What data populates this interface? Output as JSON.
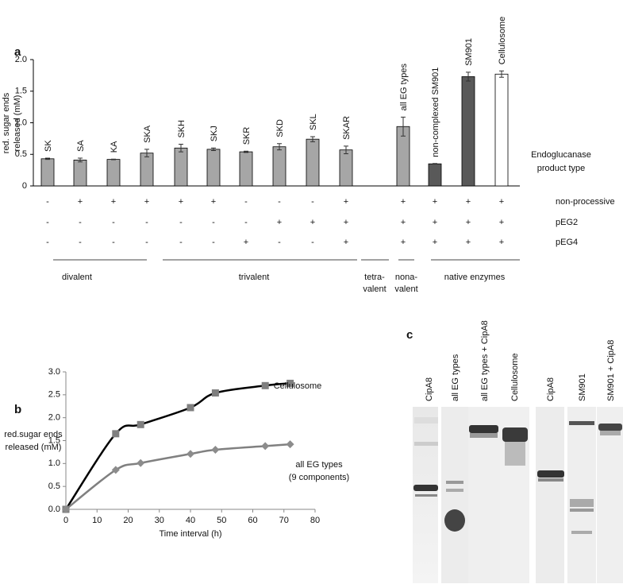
{
  "chart_data": [
    {
      "type": "bar",
      "label": "a",
      "ylabel": [
        "red. sugar ends",
        "released (mM)"
      ],
      "annotation": [
        "Endoglucanase",
        "product type"
      ],
      "categories": [
        "SK",
        "SA",
        "KA",
        "SKA",
        "SKH",
        "SKJ",
        "SKR",
        "SKD",
        "SKL",
        "SKAR",
        "all EG types",
        "non-complexed SM901",
        "SM901",
        "Cellulosome"
      ],
      "values": [
        0.43,
        0.41,
        0.42,
        0.52,
        0.6,
        0.58,
        0.54,
        0.62,
        0.74,
        0.57,
        0.94,
        0.35,
        1.73,
        1.77
      ],
      "errors": [
        0.01,
        0.03,
        0.005,
        0.06,
        0.06,
        0.02,
        0.01,
        0.05,
        0.04,
        0.06,
        0.15,
        0.005,
        0.07,
        0.05
      ],
      "colors": [
        "#a6a6a6",
        "#a6a6a6",
        "#a6a6a6",
        "#a6a6a6",
        "#a6a6a6",
        "#a6a6a6",
        "#a6a6a6",
        "#a6a6a6",
        "#a6a6a6",
        "#a6a6a6",
        "#a6a6a6",
        "#595959",
        "#595959",
        "#ffffff"
      ],
      "ylim": [
        0,
        2.0
      ],
      "yticks": [
        0,
        0.5,
        {
          "value": 1.0,
          "label": "1.0"
        },
        1.5,
        {
          "value": 2.0,
          "label": "2.0"
        }
      ],
      "rows": [
        {
          "name": "non-processive",
          "values": [
            "-",
            "+",
            "+",
            "+",
            "+",
            "+",
            "-",
            "-",
            "-",
            "+",
            "+",
            "+",
            "+",
            "+"
          ]
        },
        {
          "name": "pEG2",
          "values": [
            "-",
            "-",
            "-",
            "-",
            "-",
            "-",
            "-",
            "+",
            "+",
            "+",
            "+",
            "+",
            "+",
            "+"
          ]
        },
        {
          "name": "pEG4",
          "values": [
            "-",
            "-",
            "-",
            "-",
            "-",
            "-",
            "+",
            "-",
            "-",
            "+",
            "+",
            "+",
            "+",
            "+"
          ]
        }
      ],
      "groups": [
        {
          "label": [
            "divalent"
          ]
        },
        {
          "label": [
            "trivalent"
          ]
        },
        {
          "label": [
            "tetra-",
            "valent"
          ]
        },
        {
          "label": [
            "nona-",
            "valent"
          ]
        },
        {
          "label": [
            "native enzymes"
          ]
        }
      ]
    },
    {
      "type": "scatter",
      "label": "b",
      "xlabel": "Time interval (h)",
      "ylabel": [
        "red.sugar ends",
        "released (mM)"
      ],
      "series": [
        {
          "name": "Cellulosome",
          "color": "#000000",
          "marker_color": "#7f7f7f",
          "marker": "square",
          "x": [
            0,
            16,
            24,
            40,
            48,
            64,
            72
          ],
          "values": [
            0,
            1.65,
            1.85,
            2.22,
            2.54,
            2.7,
            2.75
          ]
        },
        {
          "name": "all EG types (9 components)",
          "color": "#808080",
          "marker_color": "#8c8c8c",
          "marker": "diamond",
          "x": [
            0,
            16,
            24,
            40,
            48,
            64,
            72
          ],
          "values": [
            0,
            0.86,
            1.01,
            1.21,
            1.3,
            1.38,
            1.42
          ]
        }
      ],
      "xlim": [
        0,
        80
      ],
      "xticks": [
        0,
        10,
        20,
        30,
        40,
        50,
        60,
        70,
        80
      ],
      "ylim": [
        0,
        3.0
      ],
      "yticks": [
        {
          "value": 0,
          "label": "0.0"
        },
        0.5,
        {
          "value": 1.0,
          "label": "1.0"
        },
        1.5,
        {
          "value": 2.0,
          "label": "2.0"
        },
        2.5,
        {
          "value": 3.0,
          "label": "3.0"
        }
      ]
    }
  ],
  "gel": {
    "label": "c",
    "lanes": [
      "CipA8",
      "all EG types",
      "all EG types + CipA8",
      "Cellulosome",
      "CipA8",
      "SM901",
      "SM901 + CipA8"
    ]
  }
}
